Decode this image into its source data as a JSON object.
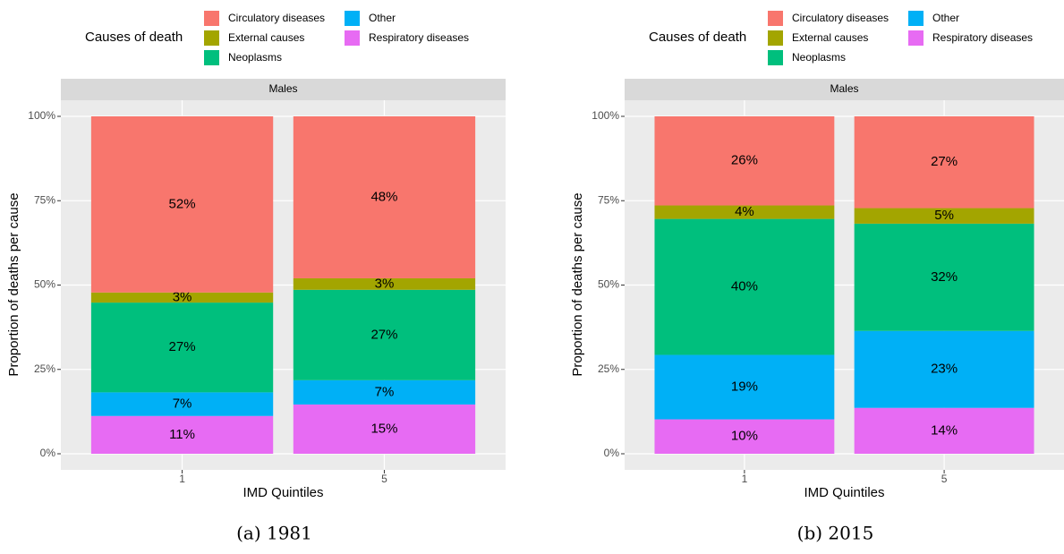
{
  "chart_data": [
    {
      "type": "stacked-bar",
      "caption": "(a) 1981",
      "strip": "Males",
      "legend_title": "Causes of death",
      "x_label": "IMD Quintiles",
      "y_label": "Proportion of deaths per cause",
      "categories": [
        "1",
        "5"
      ],
      "ylim": [
        0,
        100
      ],
      "yticks": [
        {
          "value": 0,
          "label": "0%"
        },
        {
          "value": 25,
          "label": "25%"
        },
        {
          "value": 50,
          "label": "50%"
        },
        {
          "value": 75,
          "label": "75%"
        },
        {
          "value": 100,
          "label": "100%"
        }
      ],
      "grid": true,
      "series": [
        {
          "name": "Circulatory diseases",
          "color": "#F8766D",
          "values": [
            52.2,
            48.0
          ],
          "value_labels": [
            "52%",
            "48%"
          ]
        },
        {
          "name": "External causes",
          "color": "#A3A500",
          "values": [
            3.0,
            3.4
          ],
          "value_labels": [
            "3%",
            "3%"
          ]
        },
        {
          "name": "Neoplasms",
          "color": "#00BF7D",
          "values": [
            26.6,
            26.8
          ],
          "value_labels": [
            "27%",
            "27%"
          ]
        },
        {
          "name": "Other",
          "color": "#00B0F6",
          "values": [
            7.0,
            7.2
          ],
          "value_labels": [
            "7%",
            "7%"
          ]
        },
        {
          "name": "Respiratory diseases",
          "color": "#E76BF3",
          "values": [
            11.2,
            14.6
          ],
          "value_labels": [
            "11%",
            "15%"
          ]
        }
      ]
    },
    {
      "type": "stacked-bar",
      "caption": "(b) 2015",
      "strip": "Males",
      "legend_title": "Causes of death",
      "x_label": "IMD Quintiles",
      "y_label": "Proportion of deaths per cause",
      "categories": [
        "1",
        "5"
      ],
      "ylim": [
        0,
        100
      ],
      "yticks": [
        {
          "value": 0,
          "label": "0%"
        },
        {
          "value": 25,
          "label": "25%"
        },
        {
          "value": 50,
          "label": "50%"
        },
        {
          "value": 75,
          "label": "75%"
        },
        {
          "value": 100,
          "label": "100%"
        }
      ],
      "grid": true,
      "series": [
        {
          "name": "Circulatory diseases",
          "color": "#F8766D",
          "values": [
            26.4,
            27.2
          ],
          "value_labels": [
            "26%",
            "27%"
          ]
        },
        {
          "name": "External causes",
          "color": "#A3A500",
          "values": [
            4.0,
            4.6
          ],
          "value_labels": [
            "4%",
            "5%"
          ]
        },
        {
          "name": "Neoplasms",
          "color": "#00BF7D",
          "values": [
            40.3,
            31.8
          ],
          "value_labels": [
            "40%",
            "32%"
          ]
        },
        {
          "name": "Other",
          "color": "#00B0F6",
          "values": [
            19.1,
            22.8
          ],
          "value_labels": [
            "19%",
            "23%"
          ]
        },
        {
          "name": "Respiratory diseases",
          "color": "#E76BF3",
          "values": [
            10.2,
            13.6
          ],
          "value_labels": [
            "10%",
            "14%"
          ]
        }
      ]
    }
  ]
}
